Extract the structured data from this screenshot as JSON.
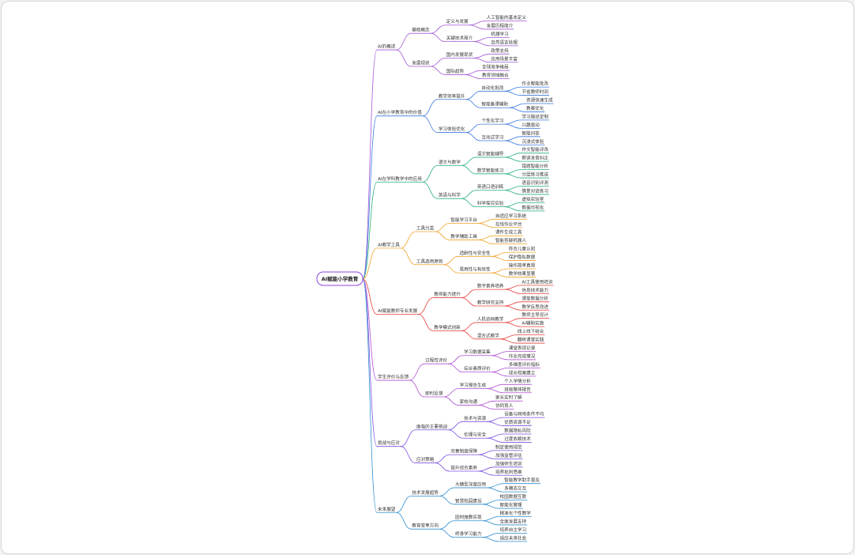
{
  "root": "AI赋能小学教育",
  "branches": [
    {
      "label": "AI的概述",
      "color": "#a259d9",
      "children": [
        {
          "label": "基础概念",
          "children": [
            {
              "label": "定义与发展",
              "children": [
                "人工智能的基本定义",
                "发展历程简介"
              ]
            },
            {
              "label": "关键技术简介",
              "children": [
                "机器学习",
                "自然语言处理"
              ]
            }
          ]
        },
        {
          "label": "发展现状",
          "children": [
            {
              "label": "国内发展现状",
              "children": [
                "政策支持",
                "应用场景丰富"
              ]
            },
            {
              "label": "国际趋势",
              "children": [
                "全球竞争格局",
                "教育领域融合"
              ]
            }
          ]
        }
      ]
    },
    {
      "label": "AI在小学教育中的价值",
      "color": "#3a78e0",
      "children": [
        {
          "label": "教学效率提升",
          "children": [
            {
              "label": "自动化批改",
              "children": [
                "作业智能批改",
                "节省教师时间"
              ]
            },
            {
              "label": "智能备课辅助",
              "children": [
                "资源快速生成",
                "教案优化"
              ]
            }
          ]
        },
        {
          "label": "学习体验优化",
          "children": [
            {
              "label": "个性化学习",
              "children": [
                "学习路径定制",
                "兴趣驱动"
              ]
            },
            {
              "label": "互动式学习",
              "children": [
                "智能问答",
                "沉浸式体验"
              ]
            }
          ]
        }
      ]
    },
    {
      "label": "AI在学科教学中的应用",
      "color": "#27b07a",
      "children": [
        {
          "label": "语文与数学",
          "children": [
            {
              "label": "语文智能辅导",
              "children": [
                "作文智能评改",
                "朗读发音纠正"
              ]
            },
            {
              "label": "数学智能练习",
              "children": [
                "错题智能分析",
                "分层练习推送"
              ]
            }
          ]
        },
        {
          "label": "英语与科学",
          "children": [
            {
              "label": "英语口语训练",
              "children": [
                "语音识别评测",
                "情景对话练习"
              ]
            },
            {
              "label": "科学探究实验",
              "children": [
                "虚拟实验室",
                "数据可视化"
              ]
            }
          ]
        }
      ]
    },
    {
      "label": "AI教学工具",
      "color": "#f0a32a",
      "children": [
        {
          "label": "工具分类",
          "children": [
            {
              "label": "智能学习平台",
              "children": [
                "自适应学习系统",
                "在线作业平台"
              ]
            },
            {
              "label": "教学辅助工具",
              "children": [
                "课件生成工具",
                "智能答疑机器人"
              ]
            }
          ]
        },
        {
          "label": "工具选用原则",
          "children": [
            {
              "label": "适龄性与安全性",
              "children": [
                "符合儿童认知",
                "保护隐私数据"
              ]
            },
            {
              "label": "易用性与有效性",
              "children": [
                "操作简单直观",
                "教学效果显著"
              ]
            }
          ]
        }
      ]
    },
    {
      "label": "AI赋能教师专业发展",
      "color": "#e5413b",
      "children": [
        {
          "label": "教师能力提升",
          "children": [
            {
              "label": "数字素养培养",
              "children": [
                "AI工具使用培训",
                "信息技术能力"
              ]
            },
            {
              "label": "教学研究支持",
              "children": [
                "课堂数据分析",
                "教学反思改进"
              ]
            }
          ]
        },
        {
          "label": "教学模式创新",
          "children": [
            {
              "label": "人机协同教学",
              "children": [
                "教师主导设计",
                "AI辅助实施"
              ]
            },
            {
              "label": "混合式教学",
              "children": [
                "线上线下结合",
                "翻转课堂实践"
              ]
            }
          ]
        }
      ]
    },
    {
      "label": "学生评价与反馈",
      "color": "#b04fd3",
      "children": [
        {
          "label": "过程性评价",
          "children": [
            {
              "label": "学习数据采集",
              "children": [
                "课堂表现记录",
                "作业完成情况"
              ]
            },
            {
              "label": "综合素质评价",
              "children": [
                "多维度评价指标",
                "成长档案建立"
              ]
            }
          ]
        },
        {
          "label": "即时反馈",
          "children": [
            {
              "label": "学习报告生成",
              "children": [
                "个人学情分析",
                "班级整体报告"
              ]
            },
            {
              "label": "家校沟通",
              "children": [
                "家长实时了解",
                "协同育人"
              ]
            }
          ]
        }
      ]
    },
    {
      "label": "挑战与应对",
      "color": "#7b4fe0",
      "children": [
        {
          "label": "面临的主要挑战",
          "children": [
            {
              "label": "技术与资源",
              "children": [
                "设备与网络条件不均",
                "优质资源不足"
              ]
            },
            {
              "label": "伦理与安全",
              "children": [
                "数据隐私风险",
                "过度依赖技术"
              ]
            }
          ]
        },
        {
          "label": "应对策略",
          "children": [
            {
              "label": "完善制度保障",
              "children": [
                "制定使用规范",
                "加强监管评估"
              ]
            },
            {
              "label": "提升综合素养",
              "children": [
                "加强师生培训",
                "培养批判思维"
              ]
            }
          ]
        }
      ]
    },
    {
      "label": "未来展望",
      "color": "#2f8fd0",
      "children": [
        {
          "label": "技术发展趋势",
          "children": [
            {
              "label": "大模型深度应用",
              "children": [
                "智能教学助手普及",
                "多模态交互"
              ]
            },
            {
              "label": "智慧校园建设",
              "children": [
                "校园数据互联",
                "智能化管理"
              ]
            }
          ]
        },
        {
          "label": "教育变革方向",
          "children": [
            {
              "label": "因材施教实现",
              "children": [
                "精准化个性教学",
                "全面发展支持"
              ]
            },
            {
              "label": "终身学习能力",
              "children": [
                "培养自主学习",
                "适应未来社会"
              ]
            }
          ]
        }
      ]
    }
  ]
}
